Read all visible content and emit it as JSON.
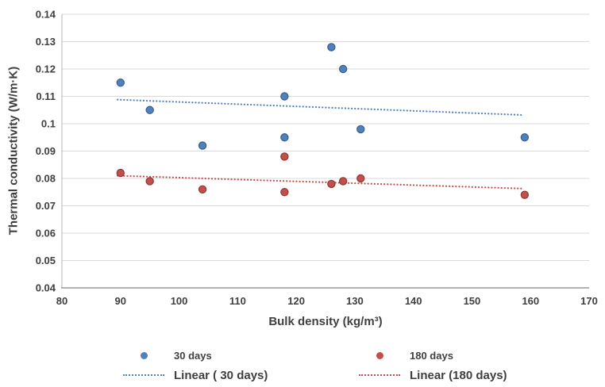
{
  "figure": {
    "background": "#FFFFFF"
  },
  "chart_data": {
    "type": "scatter",
    "title": "",
    "xlabel": "Bulk density (kg/m³)",
    "ylabel": "Thermal conductivity (W/m·K)",
    "xlim": [
      80,
      170
    ],
    "ylim": [
      0.04,
      0.14
    ],
    "grid": "horizontal-only",
    "legend_position": "bottom",
    "x_ticks": [
      {
        "value": 80,
        "label": "80"
      },
      {
        "value": 90,
        "label": "90"
      },
      {
        "value": 100,
        "label": "100"
      },
      {
        "value": 110,
        "label": "110"
      },
      {
        "value": 120,
        "label": "120"
      },
      {
        "value": 130,
        "label": "130"
      },
      {
        "value": 140,
        "label": "140"
      },
      {
        "value": 150,
        "label": "150"
      },
      {
        "value": 160,
        "label": "160"
      },
      {
        "value": 170,
        "label": "170"
      }
    ],
    "y_ticks": [
      {
        "value": 0.04,
        "label": "0.04"
      },
      {
        "value": 0.05,
        "label": "0.05"
      },
      {
        "value": 0.06,
        "label": "0.06"
      },
      {
        "value": 0.07,
        "label": "0.07"
      },
      {
        "value": 0.08,
        "label": "0.08"
      },
      {
        "value": 0.09,
        "label": "0.09"
      },
      {
        "value": 0.1,
        "label": "0.1"
      },
      {
        "value": 0.11,
        "label": "0.11"
      },
      {
        "value": 0.12,
        "label": "0.12"
      },
      {
        "value": 0.13,
        "label": "0.13"
      },
      {
        "value": 0.14,
        "label": "0.14"
      }
    ],
    "series": [
      {
        "name": "30 days",
        "color": "#4F81BD",
        "border": "#385D8A",
        "marker": "circle",
        "points": [
          [
            90,
            0.115
          ],
          [
            95,
            0.105
          ],
          [
            104,
            0.092
          ],
          [
            118,
            0.11
          ],
          [
            118,
            0.095
          ],
          [
            126,
            0.128
          ],
          [
            128,
            0.12
          ],
          [
            131,
            0.098
          ],
          [
            159,
            0.095
          ]
        ]
      },
      {
        "name": "180 days",
        "color": "#C0504D",
        "border": "#943634",
        "marker": "circle",
        "points": [
          [
            90,
            0.082
          ],
          [
            95,
            0.079
          ],
          [
            104,
            0.076
          ],
          [
            118,
            0.088
          ],
          [
            118,
            0.075
          ],
          [
            126,
            0.078
          ],
          [
            128,
            0.079
          ],
          [
            131,
            0.08
          ],
          [
            159,
            0.074
          ]
        ]
      }
    ],
    "trendlines": [
      {
        "name": "Linear ( 30 days)",
        "series": "30 days",
        "color": "#4F81BD",
        "style": "dotted",
        "start": [
          89.5,
          0.1088
        ],
        "end": [
          158.5,
          0.1032
        ]
      },
      {
        "name": "Linear (180 days)",
        "series": "180 days",
        "color": "#C0504D",
        "style": "dotted",
        "start": [
          89.5,
          0.081
        ],
        "end": [
          158.5,
          0.0763
        ]
      }
    ],
    "colors": {
      "gridline": "#D9D9D9",
      "axis_bottom": "#A6A6A6",
      "axis_left": "#C3C3C3",
      "tick_text": "#3F3F3F"
    }
  }
}
